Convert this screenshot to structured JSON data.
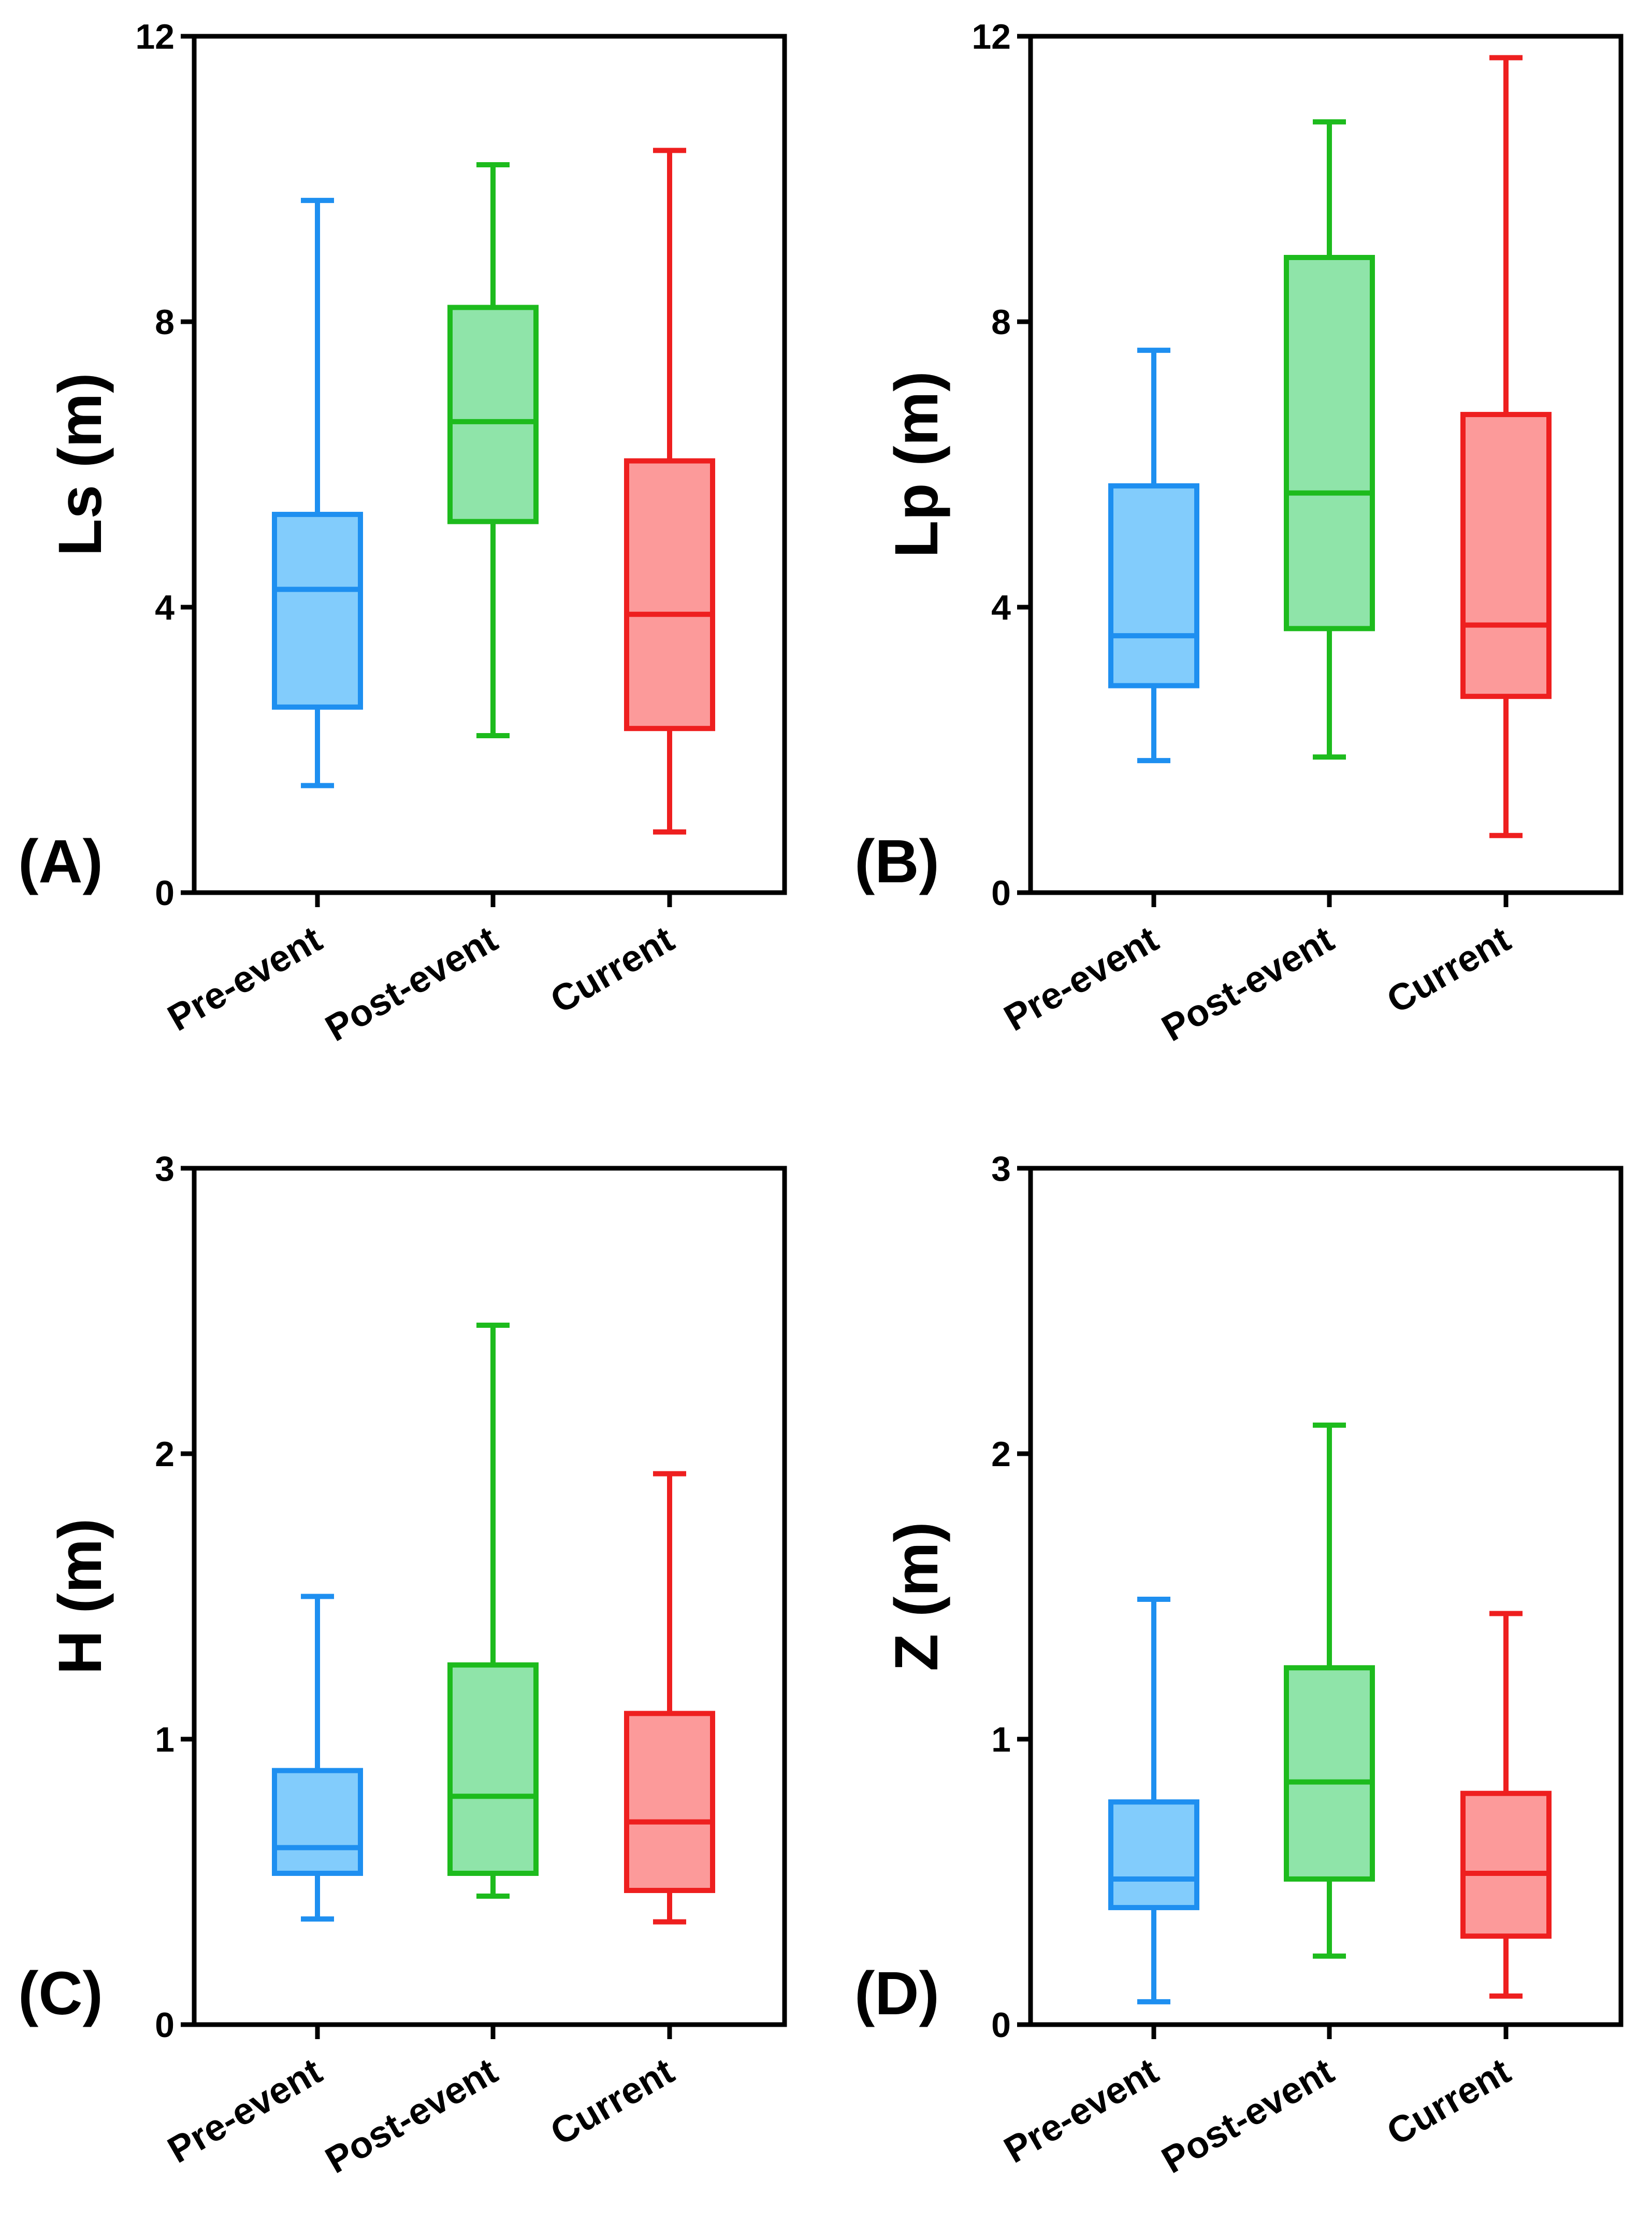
{
  "colors": {
    "Pre-event": {
      "stroke": "#1e8ff0",
      "fill": "#82ccfc"
    },
    "Post-event": {
      "stroke": "#1dbb1d",
      "fill": "#8fe4a9"
    },
    "Current": {
      "stroke": "#ee1f1f",
      "fill": "#fc9a9a"
    }
  },
  "chart_data": [
    {
      "type": "box",
      "panel_label": "(A)",
      "ylabel": "Ls (m)",
      "xlabel": "",
      "ylim": [
        0,
        12
      ],
      "yticks": [
        0,
        4,
        8,
        12
      ],
      "categories": [
        "Pre-event",
        "Post-event",
        "Current"
      ],
      "boxes": [
        {
          "name": "Pre-event",
          "min": 1.5,
          "q1": 2.6,
          "median": 4.25,
          "q3": 5.3,
          "max": 9.7
        },
        {
          "name": "Post-event",
          "min": 2.2,
          "q1": 5.2,
          "median": 6.6,
          "q3": 8.2,
          "max": 10.2
        },
        {
          "name": "Current",
          "min": 0.85,
          "q1": 2.3,
          "median": 3.9,
          "q3": 6.05,
          "max": 10.4
        }
      ]
    },
    {
      "type": "box",
      "panel_label": "(B)",
      "ylabel": "Lp (m)",
      "xlabel": "",
      "ylim": [
        0,
        12
      ],
      "yticks": [
        0,
        4,
        8,
        12
      ],
      "categories": [
        "Pre-event",
        "Post-event",
        "Current"
      ],
      "boxes": [
        {
          "name": "Pre-event",
          "min": 1.85,
          "q1": 2.9,
          "median": 3.6,
          "q3": 5.7,
          "max": 7.6
        },
        {
          "name": "Post-event",
          "min": 1.9,
          "q1": 3.7,
          "median": 5.6,
          "q3": 8.9,
          "max": 10.8
        },
        {
          "name": "Current",
          "min": 0.8,
          "q1": 2.75,
          "median": 3.75,
          "q3": 6.7,
          "max": 11.7
        }
      ]
    },
    {
      "type": "box",
      "panel_label": "(C)",
      "ylabel": "H (m)",
      "xlabel": "",
      "ylim": [
        0,
        3
      ],
      "yticks": [
        0,
        1,
        2,
        3
      ],
      "categories": [
        "Pre-event",
        "Post-event",
        "Current"
      ],
      "boxes": [
        {
          "name": "Pre-event",
          "min": 0.37,
          "q1": 0.53,
          "median": 0.62,
          "q3": 0.89,
          "max": 1.5
        },
        {
          "name": "Post-event",
          "min": 0.45,
          "q1": 0.53,
          "median": 0.8,
          "q3": 1.26,
          "max": 2.45
        },
        {
          "name": "Current",
          "min": 0.36,
          "q1": 0.47,
          "median": 0.71,
          "q3": 1.09,
          "max": 1.93
        }
      ]
    },
    {
      "type": "box",
      "panel_label": "(D)",
      "ylabel": "Z (m)",
      "xlabel": "",
      "ylim": [
        0,
        3
      ],
      "yticks": [
        0,
        1,
        2,
        3
      ],
      "categories": [
        "Pre-event",
        "Post-event",
        "Current"
      ],
      "boxes": [
        {
          "name": "Pre-event",
          "min": 0.08,
          "q1": 0.41,
          "median": 0.51,
          "q3": 0.78,
          "max": 1.49
        },
        {
          "name": "Post-event",
          "min": 0.24,
          "q1": 0.51,
          "median": 0.85,
          "q3": 1.25,
          "max": 2.1
        },
        {
          "name": "Current",
          "min": 0.1,
          "q1": 0.31,
          "median": 0.53,
          "q3": 0.81,
          "max": 1.44
        }
      ]
    }
  ]
}
